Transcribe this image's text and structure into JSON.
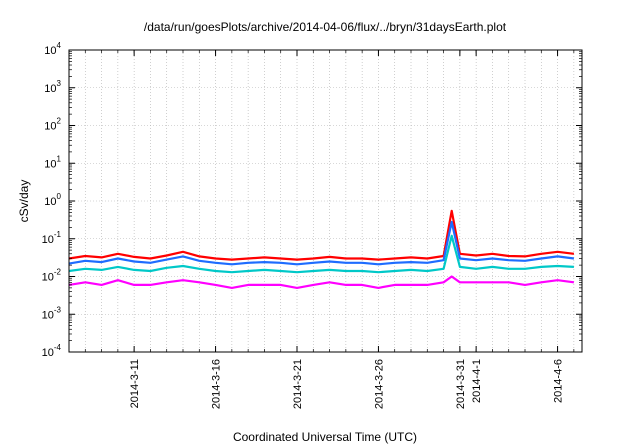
{
  "chart_data": {
    "type": "line",
    "title": "/data/run/goesPlots/archive/2014-04-06/flux/../bryn/31daysEarth.plot",
    "xlabel": "Coordinated Universal Time (UTC)",
    "ylabel": "cSv/day",
    "yscale": "log",
    "ylim": [
      0.0001,
      10000
    ],
    "xlim": [
      "2014-03-07",
      "2014-04-07 12:00"
    ],
    "grid": true,
    "ytick_labels": [
      {
        "base": "10",
        "exp": "-4"
      },
      {
        "base": "10",
        "exp": "-3"
      },
      {
        "base": "10",
        "exp": "-2"
      },
      {
        "base": "10",
        "exp": "-1"
      },
      {
        "base": "10",
        "exp": "0"
      },
      {
        "base": "10",
        "exp": "1"
      },
      {
        "base": "10",
        "exp": "2"
      },
      {
        "base": "10",
        "exp": "3"
      },
      {
        "base": "10",
        "exp": "4"
      }
    ],
    "xticks": [
      {
        "date": "2014-03-11",
        "label": "2014-3-11"
      },
      {
        "date": "2014-03-16",
        "label": "2014-3-16"
      },
      {
        "date": "2014-03-21",
        "label": "2014-3-21"
      },
      {
        "date": "2014-03-26",
        "label": "2014-3-26"
      },
      {
        "date": "2014-03-31",
        "label": "2014-3-31"
      },
      {
        "date": "2014-04-01",
        "label": "2014-4-1"
      },
      {
        "date": "2014-04-06",
        "label": "2014-4-6"
      }
    ],
    "series": [
      {
        "color": "#ff0000",
        "values": [
          [
            "2014-03-07",
            0.03
          ],
          [
            "2014-03-08",
            0.035
          ],
          [
            "2014-03-09",
            0.032
          ],
          [
            "2014-03-10",
            0.04
          ],
          [
            "2014-03-11",
            0.033
          ],
          [
            "2014-03-12",
            0.03
          ],
          [
            "2014-03-13",
            0.036
          ],
          [
            "2014-03-14",
            0.045
          ],
          [
            "2014-03-15",
            0.034
          ],
          [
            "2014-03-16",
            0.03
          ],
          [
            "2014-03-17",
            0.028
          ],
          [
            "2014-03-18",
            0.03
          ],
          [
            "2014-03-19",
            0.032
          ],
          [
            "2014-03-20",
            0.03
          ],
          [
            "2014-03-21",
            0.028
          ],
          [
            "2014-03-22",
            0.03
          ],
          [
            "2014-03-23",
            0.033
          ],
          [
            "2014-03-24",
            0.03
          ],
          [
            "2014-03-25",
            0.03
          ],
          [
            "2014-03-26",
            0.028
          ],
          [
            "2014-03-27",
            0.03
          ],
          [
            "2014-03-28",
            0.032
          ],
          [
            "2014-03-29",
            0.03
          ],
          [
            "2014-03-30",
            0.035
          ],
          [
            "2014-03-30 12:00",
            0.55
          ],
          [
            "2014-03-31",
            0.04
          ],
          [
            "2014-04-01",
            0.036
          ],
          [
            "2014-04-02",
            0.04
          ],
          [
            "2014-04-03",
            0.035
          ],
          [
            "2014-04-04",
            0.034
          ],
          [
            "2014-04-05",
            0.04
          ],
          [
            "2014-04-06",
            0.045
          ],
          [
            "2014-04-07",
            0.04
          ]
        ]
      },
      {
        "color": "#1e6cff",
        "values": [
          [
            "2014-03-07",
            0.022
          ],
          [
            "2014-03-08",
            0.026
          ],
          [
            "2014-03-09",
            0.024
          ],
          [
            "2014-03-10",
            0.03
          ],
          [
            "2014-03-11",
            0.025
          ],
          [
            "2014-03-12",
            0.023
          ],
          [
            "2014-03-13",
            0.028
          ],
          [
            "2014-03-14",
            0.034
          ],
          [
            "2014-03-15",
            0.026
          ],
          [
            "2014-03-16",
            0.023
          ],
          [
            "2014-03-17",
            0.021
          ],
          [
            "2014-03-18",
            0.023
          ],
          [
            "2014-03-19",
            0.024
          ],
          [
            "2014-03-20",
            0.023
          ],
          [
            "2014-03-21",
            0.021
          ],
          [
            "2014-03-22",
            0.023
          ],
          [
            "2014-03-23",
            0.025
          ],
          [
            "2014-03-24",
            0.023
          ],
          [
            "2014-03-25",
            0.023
          ],
          [
            "2014-03-26",
            0.021
          ],
          [
            "2014-03-27",
            0.023
          ],
          [
            "2014-03-28",
            0.024
          ],
          [
            "2014-03-29",
            0.023
          ],
          [
            "2014-03-30",
            0.027
          ],
          [
            "2014-03-30 12:00",
            0.28
          ],
          [
            "2014-03-31",
            0.03
          ],
          [
            "2014-04-01",
            0.027
          ],
          [
            "2014-04-02",
            0.03
          ],
          [
            "2014-04-03",
            0.027
          ],
          [
            "2014-04-04",
            0.026
          ],
          [
            "2014-04-05",
            0.03
          ],
          [
            "2014-04-06",
            0.034
          ],
          [
            "2014-04-07",
            0.03
          ]
        ]
      },
      {
        "color": "#00c8c8",
        "values": [
          [
            "2014-03-07",
            0.014
          ],
          [
            "2014-03-08",
            0.016
          ],
          [
            "2014-03-09",
            0.015
          ],
          [
            "2014-03-10",
            0.018
          ],
          [
            "2014-03-11",
            0.015
          ],
          [
            "2014-03-12",
            0.014
          ],
          [
            "2014-03-13",
            0.017
          ],
          [
            "2014-03-14",
            0.019
          ],
          [
            "2014-03-15",
            0.016
          ],
          [
            "2014-03-16",
            0.014
          ],
          [
            "2014-03-17",
            0.013
          ],
          [
            "2014-03-18",
            0.014
          ],
          [
            "2014-03-19",
            0.015
          ],
          [
            "2014-03-20",
            0.014
          ],
          [
            "2014-03-21",
            0.013
          ],
          [
            "2014-03-22",
            0.014
          ],
          [
            "2014-03-23",
            0.015
          ],
          [
            "2014-03-24",
            0.014
          ],
          [
            "2014-03-25",
            0.014
          ],
          [
            "2014-03-26",
            0.013
          ],
          [
            "2014-03-27",
            0.014
          ],
          [
            "2014-03-28",
            0.015
          ],
          [
            "2014-03-29",
            0.014
          ],
          [
            "2014-03-30",
            0.016
          ],
          [
            "2014-03-30 12:00",
            0.12
          ],
          [
            "2014-03-31",
            0.018
          ],
          [
            "2014-04-01",
            0.016
          ],
          [
            "2014-04-02",
            0.018
          ],
          [
            "2014-04-03",
            0.016
          ],
          [
            "2014-04-04",
            0.016
          ],
          [
            "2014-04-05",
            0.018
          ],
          [
            "2014-04-06",
            0.019
          ],
          [
            "2014-04-07",
            0.018
          ]
        ]
      },
      {
        "color": "#ff00ff",
        "values": [
          [
            "2014-03-07",
            0.006
          ],
          [
            "2014-03-08",
            0.007
          ],
          [
            "2014-03-09",
            0.006
          ],
          [
            "2014-03-10",
            0.008
          ],
          [
            "2014-03-11",
            0.006
          ],
          [
            "2014-03-12",
            0.006
          ],
          [
            "2014-03-13",
            0.007
          ],
          [
            "2014-03-14",
            0.008
          ],
          [
            "2014-03-15",
            0.007
          ],
          [
            "2014-03-16",
            0.006
          ],
          [
            "2014-03-17",
            0.005
          ],
          [
            "2014-03-18",
            0.006
          ],
          [
            "2014-03-19",
            0.006
          ],
          [
            "2014-03-20",
            0.006
          ],
          [
            "2014-03-21",
            0.005
          ],
          [
            "2014-03-22",
            0.006
          ],
          [
            "2014-03-23",
            0.007
          ],
          [
            "2014-03-24",
            0.006
          ],
          [
            "2014-03-25",
            0.006
          ],
          [
            "2014-03-26",
            0.005
          ],
          [
            "2014-03-27",
            0.006
          ],
          [
            "2014-03-28",
            0.006
          ],
          [
            "2014-03-29",
            0.006
          ],
          [
            "2014-03-30",
            0.007
          ],
          [
            "2014-03-30 12:00",
            0.01
          ],
          [
            "2014-03-31",
            0.007
          ],
          [
            "2014-04-01",
            0.007
          ],
          [
            "2014-04-02",
            0.007
          ],
          [
            "2014-04-03",
            0.007
          ],
          [
            "2014-04-04",
            0.006
          ],
          [
            "2014-04-05",
            0.007
          ],
          [
            "2014-04-06",
            0.008
          ],
          [
            "2014-04-07",
            0.007
          ]
        ]
      }
    ]
  }
}
